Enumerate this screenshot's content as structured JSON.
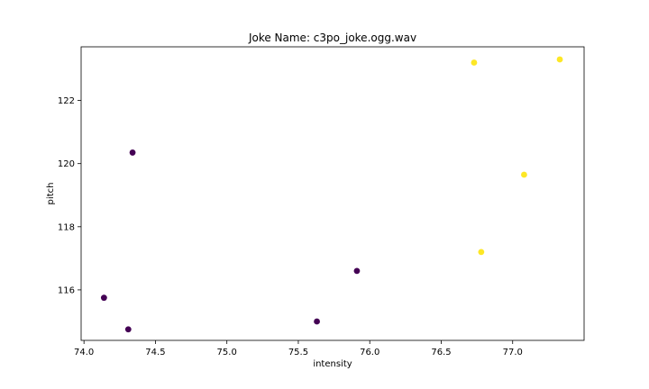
{
  "chart_data": {
    "type": "scatter",
    "title": "Joke Name: c3po_joke.ogg.wav",
    "xlabel": "intensity",
    "ylabel": "pitch",
    "xlim": [
      73.98,
      77.5
    ],
    "ylim": [
      114.4,
      123.7
    ],
    "x_ticks": [
      74.0,
      74.5,
      75.0,
      75.5,
      76.0,
      76.5,
      77.0
    ],
    "x_tick_labels": [
      "74.0",
      "74.5",
      "75.0",
      "75.5",
      "76.0",
      "76.5",
      "77.0"
    ],
    "y_ticks": [
      116,
      118,
      120,
      122
    ],
    "y_tick_labels": [
      "116",
      "118",
      "120",
      "122"
    ],
    "grid": false,
    "colors": {
      "class_0": "#440154",
      "class_1": "#fde725"
    },
    "points": [
      {
        "x": 74.14,
        "y": 115.75,
        "class": 0
      },
      {
        "x": 74.31,
        "y": 114.75,
        "class": 0
      },
      {
        "x": 74.34,
        "y": 120.35,
        "class": 0
      },
      {
        "x": 75.63,
        "y": 115.0,
        "class": 0
      },
      {
        "x": 75.91,
        "y": 116.6,
        "class": 0
      },
      {
        "x": 76.73,
        "y": 123.2,
        "class": 1
      },
      {
        "x": 76.78,
        "y": 117.2,
        "class": 1
      },
      {
        "x": 77.08,
        "y": 119.65,
        "class": 1
      },
      {
        "x": 77.33,
        "y": 123.3,
        "class": 1
      }
    ]
  }
}
